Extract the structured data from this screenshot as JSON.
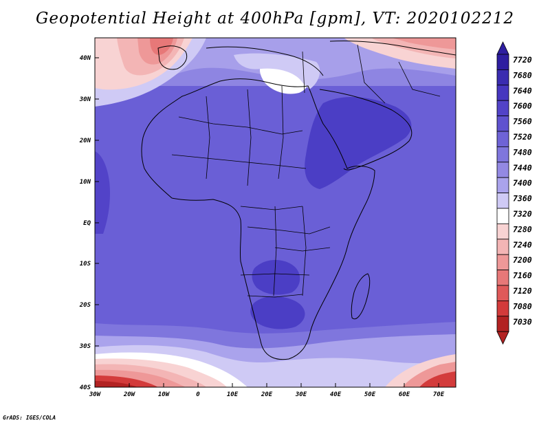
{
  "title": "Geopotential Height at 400hPa [gpm], VT: 2020102212",
  "footer": "GrADS: IGES/COLA",
  "lat_labels": [
    "40N",
    "30N",
    "20N",
    "10N",
    "EQ",
    "10S",
    "20S",
    "30S",
    "40S"
  ],
  "lon_labels": [
    "30W",
    "20W",
    "10W",
    "0",
    "10E",
    "20E",
    "30E",
    "40E",
    "50E",
    "60E",
    "70E"
  ],
  "colorbar": {
    "levels": [
      "7720",
      "7680",
      "7640",
      "7600",
      "7560",
      "7520",
      "7480",
      "7440",
      "7400",
      "7360",
      "7320",
      "7280",
      "7240",
      "7200",
      "7160",
      "7120",
      "7080",
      "7030"
    ],
    "colors": [
      "#2e1ea0",
      "#3a2cb0",
      "#4636bf",
      "#5243c8",
      "#5f52cf",
      "#6e63d6",
      "#7f76dd",
      "#9389e3",
      "#aaa3ec",
      "#cfcaf5",
      "#ffffff",
      "#f8d3d3",
      "#f3b5b5",
      "#ee9898",
      "#e77878",
      "#df5959",
      "#d33b3b",
      "#b22222"
    ]
  }
}
